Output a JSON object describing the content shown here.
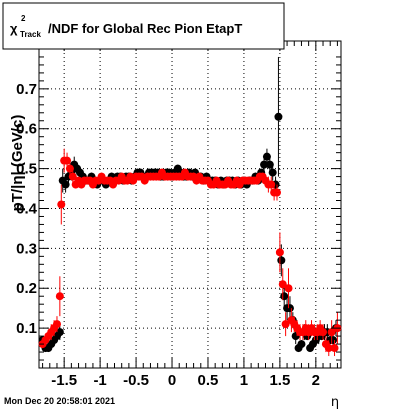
{
  "chart_data": {
    "type": "scatter",
    "title_parts": {
      "chi": "χ",
      "sup": "2",
      "sub": "Track",
      "rest": "/NDF for Global Rec Pion EtapT"
    },
    "xlabel": "η",
    "ylabel": "pT/|η| (GeV/c)",
    "timestamp": "Mon Dec 20 20:58:01 2021",
    "xlim": [
      -1.85,
      2.35
    ],
    "ylim": [
      0.0,
      0.82
    ],
    "xticks": [
      -1.5,
      -1,
      -0.5,
      0,
      0.5,
      1,
      1.5,
      2
    ],
    "xtick_labels": [
      "-1.5",
      "-1",
      "-0.5",
      "0",
      "0.5",
      "1",
      "1.5",
      "2"
    ],
    "yticks": [
      0.1,
      0.2,
      0.3,
      0.4,
      0.5,
      0.6,
      0.7
    ],
    "ytick_labels": [
      "0.1",
      "0.2",
      "0.3",
      "0.4",
      "0.5",
      "0.6",
      "0.7"
    ],
    "grid": true,
    "colors": {
      "black_series": "#000000",
      "red_series": "#ff0000"
    },
    "series": [
      {
        "color": "black",
        "points": [
          [
            -1.8,
            0.07,
            0.01
          ],
          [
            -1.76,
            0.05,
            0.01
          ],
          [
            -1.72,
            0.05,
            0.01
          ],
          [
            -1.68,
            0.06,
            0.01
          ],
          [
            -1.64,
            0.07,
            0.01
          ],
          [
            -1.6,
            0.08,
            0.01
          ],
          [
            -1.56,
            0.09,
            0.02
          ],
          [
            -1.52,
            0.47,
            0.03
          ],
          [
            -1.48,
            0.46,
            0.02
          ],
          [
            -1.44,
            0.48,
            0.02
          ],
          [
            -1.4,
            0.49,
            0.02
          ],
          [
            -1.36,
            0.51,
            0.02
          ],
          [
            -1.32,
            0.5,
            0.01
          ],
          [
            -1.28,
            0.49,
            0.01
          ],
          [
            -1.24,
            0.48,
            0.01
          ],
          [
            -1.2,
            0.47,
            0.01
          ],
          [
            -1.16,
            0.47,
            0.01
          ],
          [
            -1.12,
            0.48,
            0.01
          ],
          [
            -1.08,
            0.47,
            0.01
          ],
          [
            -1.04,
            0.46,
            0.01
          ],
          [
            -1.0,
            0.47,
            0.01
          ],
          [
            -0.96,
            0.47,
            0.01
          ],
          [
            -0.92,
            0.46,
            0.01
          ],
          [
            -0.88,
            0.47,
            0.01
          ],
          [
            -0.84,
            0.48,
            0.01
          ],
          [
            -0.8,
            0.47,
            0.01
          ],
          [
            -0.76,
            0.48,
            0.01
          ],
          [
            -0.72,
            0.48,
            0.01
          ],
          [
            -0.68,
            0.47,
            0.01
          ],
          [
            -0.64,
            0.48,
            0.01
          ],
          [
            -0.6,
            0.48,
            0.01
          ],
          [
            -0.56,
            0.47,
            0.01
          ],
          [
            -0.52,
            0.48,
            0.01
          ],
          [
            -0.48,
            0.49,
            0.01
          ],
          [
            -0.44,
            0.49,
            0.01
          ],
          [
            -0.4,
            0.48,
            0.01
          ],
          [
            -0.36,
            0.48,
            0.01
          ],
          [
            -0.32,
            0.49,
            0.01
          ],
          [
            -0.28,
            0.49,
            0.01
          ],
          [
            -0.24,
            0.49,
            0.01
          ],
          [
            -0.2,
            0.49,
            0.01
          ],
          [
            -0.16,
            0.48,
            0.01
          ],
          [
            -0.12,
            0.48,
            0.01
          ],
          [
            -0.08,
            0.49,
            0.01
          ],
          [
            -0.04,
            0.49,
            0.01
          ],
          [
            0.0,
            0.48,
            0.01
          ],
          [
            0.04,
            0.49,
            0.01
          ],
          [
            0.08,
            0.5,
            0.01
          ],
          [
            0.12,
            0.49,
            0.01
          ],
          [
            0.16,
            0.48,
            0.01
          ],
          [
            0.2,
            0.48,
            0.01
          ],
          [
            0.24,
            0.49,
            0.01
          ],
          [
            0.28,
            0.48,
            0.01
          ],
          [
            0.32,
            0.49,
            0.01
          ],
          [
            0.36,
            0.48,
            0.01
          ],
          [
            0.4,
            0.48,
            0.01
          ],
          [
            0.44,
            0.47,
            0.01
          ],
          [
            0.48,
            0.48,
            0.01
          ],
          [
            0.52,
            0.47,
            0.01
          ],
          [
            0.56,
            0.47,
            0.01
          ],
          [
            0.6,
            0.47,
            0.01
          ],
          [
            0.64,
            0.46,
            0.01
          ],
          [
            0.68,
            0.47,
            0.01
          ],
          [
            0.72,
            0.46,
            0.01
          ],
          [
            0.76,
            0.47,
            0.01
          ],
          [
            0.8,
            0.47,
            0.01
          ],
          [
            0.84,
            0.47,
            0.01
          ],
          [
            0.88,
            0.46,
            0.01
          ],
          [
            0.92,
            0.47,
            0.01
          ],
          [
            0.96,
            0.46,
            0.01
          ],
          [
            1.0,
            0.47,
            0.01
          ],
          [
            1.04,
            0.46,
            0.01
          ],
          [
            1.08,
            0.47,
            0.01
          ],
          [
            1.12,
            0.47,
            0.01
          ],
          [
            1.16,
            0.48,
            0.01
          ],
          [
            1.2,
            0.47,
            0.01
          ],
          [
            1.24,
            0.49,
            0.01
          ],
          [
            1.28,
            0.51,
            0.02
          ],
          [
            1.32,
            0.53,
            0.02
          ],
          [
            1.36,
            0.51,
            0.02
          ],
          [
            1.4,
            0.49,
            0.02
          ],
          [
            1.44,
            0.46,
            0.02
          ],
          [
            1.48,
            0.63,
            0.15
          ],
          [
            1.52,
            0.27,
            0.04
          ],
          [
            1.56,
            0.18,
            0.03
          ],
          [
            1.6,
            0.15,
            0.03
          ],
          [
            1.64,
            0.15,
            0.03
          ],
          [
            1.68,
            0.12,
            0.02
          ],
          [
            1.72,
            0.08,
            0.02
          ],
          [
            1.76,
            0.05,
            0.01
          ],
          [
            1.8,
            0.06,
            0.01
          ],
          [
            1.84,
            0.09,
            0.02
          ],
          [
            1.88,
            0.08,
            0.01
          ],
          [
            1.92,
            0.05,
            0.01
          ],
          [
            1.96,
            0.06,
            0.01
          ],
          [
            2.0,
            0.07,
            0.01
          ],
          [
            2.04,
            0.08,
            0.02
          ],
          [
            2.08,
            0.08,
            0.01
          ],
          [
            2.12,
            0.09,
            0.02
          ],
          [
            2.16,
            0.09,
            0.02
          ],
          [
            2.2,
            0.07,
            0.01
          ],
          [
            2.24,
            0.07,
            0.02
          ],
          [
            2.28,
            0.1,
            0.02
          ]
        ]
      },
      {
        "color": "red",
        "points": [
          [
            -1.8,
            0.06,
            0.01
          ],
          [
            -1.76,
            0.07,
            0.01
          ],
          [
            -1.72,
            0.08,
            0.01
          ],
          [
            -1.68,
            0.09,
            0.02
          ],
          [
            -1.64,
            0.1,
            0.02
          ],
          [
            -1.6,
            0.11,
            0.02
          ],
          [
            -1.56,
            0.18,
            0.05
          ],
          [
            -1.54,
            0.41,
            0.05
          ],
          [
            -1.5,
            0.52,
            0.03
          ],
          [
            -1.46,
            0.52,
            0.02
          ],
          [
            -1.42,
            0.5,
            0.02
          ],
          [
            -1.38,
            0.48,
            0.02
          ],
          [
            -1.34,
            0.46,
            0.01
          ],
          [
            -1.3,
            0.47,
            0.01
          ],
          [
            -1.26,
            0.46,
            0.01
          ],
          [
            -1.22,
            0.47,
            0.01
          ],
          [
            -1.18,
            0.47,
            0.01
          ],
          [
            -1.14,
            0.47,
            0.01
          ],
          [
            -1.1,
            0.46,
            0.01
          ],
          [
            -1.06,
            0.47,
            0.01
          ],
          [
            -1.02,
            0.47,
            0.01
          ],
          [
            -0.98,
            0.48,
            0.01
          ],
          [
            -0.94,
            0.47,
            0.01
          ],
          [
            -0.9,
            0.47,
            0.01
          ],
          [
            -0.86,
            0.47,
            0.01
          ],
          [
            -0.82,
            0.46,
            0.01
          ],
          [
            -0.78,
            0.47,
            0.01
          ],
          [
            -0.74,
            0.47,
            0.01
          ],
          [
            -0.7,
            0.48,
            0.01
          ],
          [
            -0.66,
            0.47,
            0.01
          ],
          [
            -0.62,
            0.47,
            0.01
          ],
          [
            -0.58,
            0.48,
            0.01
          ],
          [
            -0.54,
            0.47,
            0.01
          ],
          [
            -0.5,
            0.48,
            0.01
          ],
          [
            -0.46,
            0.48,
            0.01
          ],
          [
            -0.42,
            0.48,
            0.01
          ],
          [
            -0.38,
            0.47,
            0.01
          ],
          [
            -0.34,
            0.48,
            0.01
          ],
          [
            -0.3,
            0.48,
            0.01
          ],
          [
            -0.26,
            0.48,
            0.01
          ],
          [
            -0.22,
            0.48,
            0.01
          ],
          [
            -0.18,
            0.48,
            0.01
          ],
          [
            -0.14,
            0.49,
            0.01
          ],
          [
            -0.1,
            0.48,
            0.01
          ],
          [
            -0.06,
            0.48,
            0.01
          ],
          [
            -0.02,
            0.48,
            0.01
          ],
          [
            0.02,
            0.48,
            0.01
          ],
          [
            0.06,
            0.48,
            0.01
          ],
          [
            0.1,
            0.48,
            0.01
          ],
          [
            0.14,
            0.48,
            0.01
          ],
          [
            0.18,
            0.49,
            0.01
          ],
          [
            0.22,
            0.48,
            0.01
          ],
          [
            0.26,
            0.48,
            0.01
          ],
          [
            0.3,
            0.48,
            0.01
          ],
          [
            0.34,
            0.47,
            0.01
          ],
          [
            0.38,
            0.48,
            0.01
          ],
          [
            0.42,
            0.47,
            0.01
          ],
          [
            0.46,
            0.47,
            0.01
          ],
          [
            0.5,
            0.47,
            0.01
          ],
          [
            0.54,
            0.46,
            0.01
          ],
          [
            0.58,
            0.46,
            0.01
          ],
          [
            0.62,
            0.47,
            0.01
          ],
          [
            0.66,
            0.46,
            0.01
          ],
          [
            0.7,
            0.46,
            0.01
          ],
          [
            0.74,
            0.46,
            0.01
          ],
          [
            0.78,
            0.47,
            0.01
          ],
          [
            0.82,
            0.46,
            0.01
          ],
          [
            0.86,
            0.46,
            0.01
          ],
          [
            0.9,
            0.47,
            0.01
          ],
          [
            0.94,
            0.46,
            0.01
          ],
          [
            0.98,
            0.47,
            0.01
          ],
          [
            1.02,
            0.47,
            0.01
          ],
          [
            1.06,
            0.47,
            0.01
          ],
          [
            1.1,
            0.47,
            0.01
          ],
          [
            1.14,
            0.47,
            0.01
          ],
          [
            1.18,
            0.47,
            0.01
          ],
          [
            1.22,
            0.48,
            0.01
          ],
          [
            1.26,
            0.48,
            0.01
          ],
          [
            1.3,
            0.47,
            0.01
          ],
          [
            1.34,
            0.46,
            0.02
          ],
          [
            1.38,
            0.46,
            0.02
          ],
          [
            1.42,
            0.44,
            0.02
          ],
          [
            1.46,
            0.44,
            0.02
          ],
          [
            1.5,
            0.29,
            0.05
          ],
          [
            1.54,
            0.21,
            0.04
          ],
          [
            1.58,
            0.11,
            0.03
          ],
          [
            1.62,
            0.2,
            0.05
          ],
          [
            1.66,
            0.12,
            0.03
          ],
          [
            1.7,
            0.11,
            0.02
          ],
          [
            1.74,
            0.1,
            0.02
          ],
          [
            1.78,
            0.09,
            0.02
          ],
          [
            1.82,
            0.09,
            0.02
          ],
          [
            1.86,
            0.1,
            0.02
          ],
          [
            1.9,
            0.09,
            0.02
          ],
          [
            1.94,
            0.1,
            0.02
          ],
          [
            1.98,
            0.09,
            0.02
          ],
          [
            2.02,
            0.09,
            0.02
          ],
          [
            2.06,
            0.1,
            0.02
          ],
          [
            2.1,
            0.09,
            0.02
          ],
          [
            2.14,
            0.06,
            0.02
          ],
          [
            2.18,
            0.05,
            0.02
          ],
          [
            2.22,
            0.09,
            0.03
          ],
          [
            2.26,
            0.05,
            0.02
          ],
          [
            2.3,
            0.1,
            0.04
          ]
        ]
      }
    ]
  }
}
